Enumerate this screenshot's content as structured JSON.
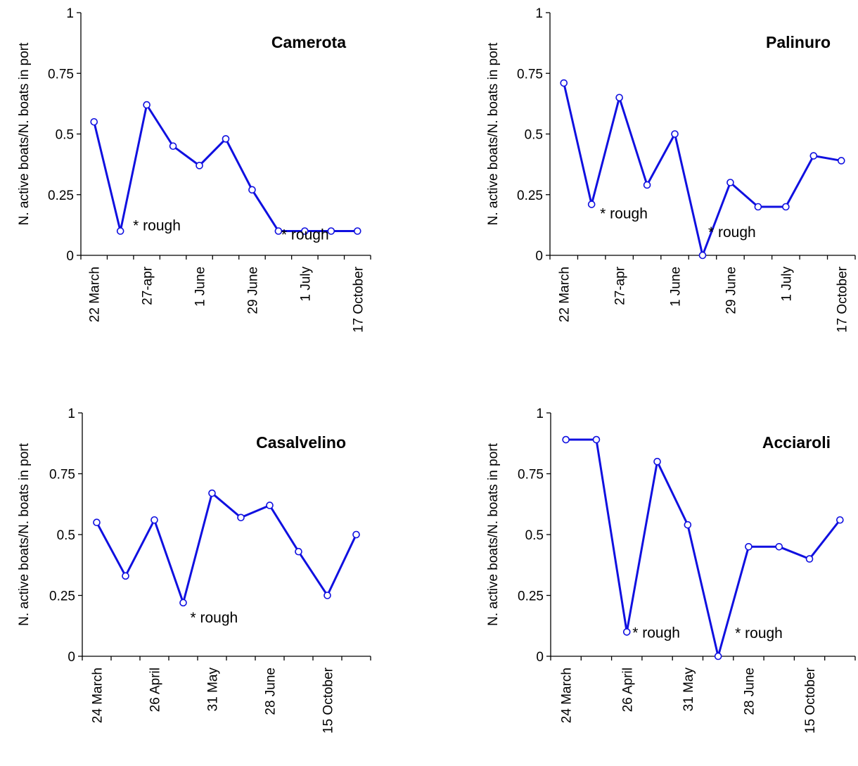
{
  "chart_data": [
    {
      "type": "line",
      "title": "Camerota",
      "ylabel": "N. active boats/N. boats in port",
      "ylim": [
        0,
        1
      ],
      "yticks": [
        "0",
        "0.25",
        "0.5",
        "0.75",
        "1"
      ],
      "x_tick_labels": [
        "22 March",
        "27-apr",
        "1 June",
        "29 June",
        "1 July",
        "17 October"
      ],
      "series": [
        {
          "values": [
            0.55,
            0.1,
            0.62,
            0.45,
            0.37,
            0.48,
            0.27,
            0.1,
            0.1,
            0.1,
            0.1
          ]
        }
      ],
      "annotations": [
        {
          "text": "* rough",
          "point_index": 1
        },
        {
          "text": "* rough",
          "point_index": 7
        }
      ]
    },
    {
      "type": "line",
      "title": "Palinuro",
      "ylabel": "N. active boats/N. boats in port",
      "ylim": [
        0,
        1
      ],
      "yticks": [
        "0",
        "0.25",
        "0.5",
        "0.75",
        "1"
      ],
      "x_tick_labels": [
        "22 March",
        "27-apr",
        "1 June",
        "29 June",
        "1 July",
        "17 October"
      ],
      "series": [
        {
          "values": [
            0.71,
            0.21,
            0.65,
            0.29,
            0.5,
            0.0,
            0.3,
            0.2,
            0.2,
            0.41,
            0.39
          ]
        }
      ],
      "annotations": [
        {
          "text": "* rough",
          "point_index": 1
        },
        {
          "text": "* rough",
          "point_index": 5
        }
      ]
    },
    {
      "type": "line",
      "title": "Casalvelino",
      "ylabel": "N. active boats/N. boats in port",
      "ylim": [
        0,
        1
      ],
      "yticks": [
        "0",
        "0.25",
        "0.5",
        "0.75",
        "1"
      ],
      "x_tick_labels": [
        "24 March",
        "26 April",
        "31 May",
        "28 June",
        "15 October"
      ],
      "series": [
        {
          "values": [
            0.55,
            0.33,
            0.56,
            0.22,
            0.67,
            0.57,
            0.62,
            0.43,
            0.25,
            0.5
          ]
        }
      ],
      "annotations": [
        {
          "text": "* rough",
          "point_index": 3
        }
      ]
    },
    {
      "type": "line",
      "title": "Acciaroli",
      "ylabel": "N. active boats/N. boats in port",
      "ylim": [
        0,
        1
      ],
      "yticks": [
        "0",
        "0.25",
        "0.5",
        "0.75",
        "1"
      ],
      "x_tick_labels": [
        "24 March",
        "26 April",
        "31 May",
        "28 June",
        "15 October"
      ],
      "series": [
        {
          "values": [
            0.89,
            0.89,
            0.1,
            0.8,
            0.54,
            0.0,
            0.45,
            0.45,
            0.4,
            0.56
          ]
        }
      ],
      "annotations": [
        {
          "text": "* rough",
          "point_index": 2
        },
        {
          "text": "* rough",
          "point_index": 5
        }
      ]
    }
  ]
}
